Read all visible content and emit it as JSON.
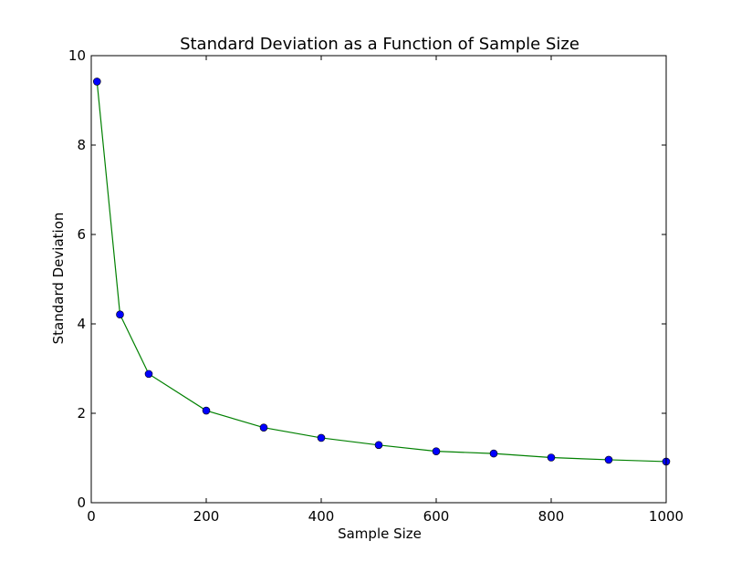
{
  "chart_data": {
    "type": "line",
    "title": "Standard Deviation as a Function of Sample Size",
    "xlabel": "Sample Size",
    "ylabel": "Standard Deviation",
    "xlim": [
      0,
      1000
    ],
    "ylim": [
      0,
      10
    ],
    "xticks": [
      "0",
      "200",
      "400",
      "600",
      "800",
      "1000"
    ],
    "yticks": [
      "0",
      "2",
      "4",
      "6",
      "8",
      "10"
    ],
    "grid": false,
    "legend": "none",
    "line_color": "#008000",
    "marker_color": "#0000ff",
    "marker_edge_color": "#000000",
    "x": [
      10,
      50,
      100,
      200,
      300,
      400,
      500,
      600,
      700,
      800,
      900,
      1000
    ],
    "series": [
      {
        "values": [
          9.42,
          4.21,
          2.88,
          2.06,
          1.68,
          1.45,
          1.29,
          1.15,
          1.1,
          1.01,
          0.96,
          0.92
        ]
      }
    ]
  }
}
